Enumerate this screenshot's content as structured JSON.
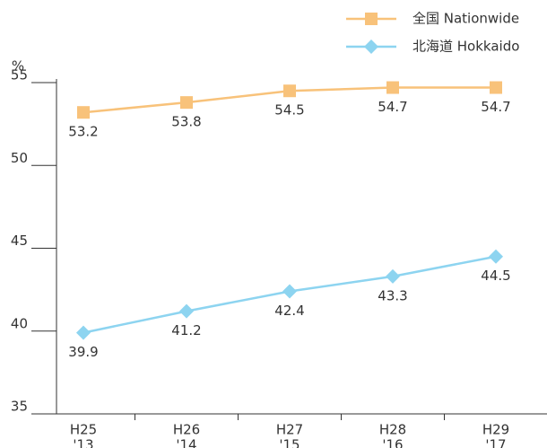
{
  "chart_data": {
    "type": "line",
    "y_label": "%",
    "categories": [
      [
        "H25",
        "'13"
      ],
      [
        "H26",
        "'14"
      ],
      [
        "H27",
        "'15"
      ],
      [
        "H28",
        "'16"
      ],
      [
        "H29",
        "'17"
      ]
    ],
    "series": [
      {
        "name": "全国 Nationwide",
        "color": "#f8c27a",
        "marker": "square",
        "values": [
          53.2,
          53.8,
          54.5,
          54.7,
          54.7
        ]
      },
      {
        "name": "北海道 Hokkaido",
        "color": "#8dd4f0",
        "marker": "diamond",
        "values": [
          39.9,
          41.2,
          42.4,
          43.3,
          44.5
        ]
      }
    ],
    "ylim": [
      35,
      55
    ],
    "yticks": [
      35,
      40,
      45,
      50,
      55
    ],
    "legend": "top-right"
  }
}
